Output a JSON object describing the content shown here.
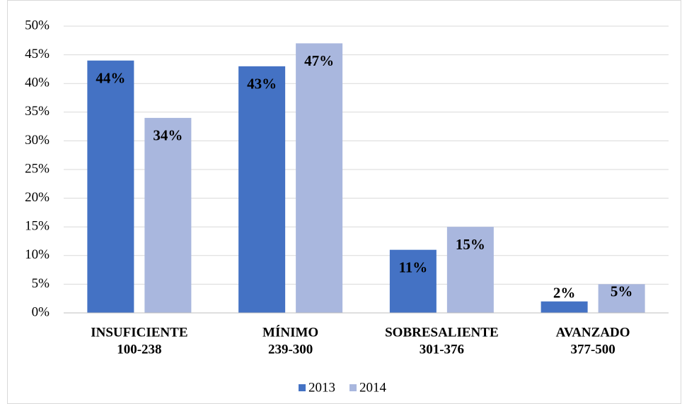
{
  "chart_data": {
    "type": "bar",
    "categories": [
      [
        "INSUFICIENTE",
        "100-238"
      ],
      [
        "MÍNIMO",
        "239-300"
      ],
      [
        "SOBRESALIENTE",
        "301-376"
      ],
      [
        "AVANZADO",
        "377-500"
      ]
    ],
    "series": [
      {
        "name": "2013",
        "color": "#4472c4",
        "values": [
          44,
          43,
          11,
          2
        ],
        "value_labels": [
          "44%",
          "43%",
          "11%",
          "2%"
        ]
      },
      {
        "name": "2014",
        "color": "#a9b7de",
        "values": [
          34,
          47,
          15,
          5
        ],
        "value_labels": [
          "34%",
          "47%",
          "15%",
          "5%"
        ]
      }
    ],
    "ylim": [
      0,
      50
    ],
    "yticks": [
      {
        "value": 0,
        "label": "0%"
      },
      {
        "value": 5,
        "label": "5%"
      },
      {
        "value": 10,
        "label": "10%"
      },
      {
        "value": 15,
        "label": "15%"
      },
      {
        "value": 20,
        "label": "20%"
      },
      {
        "value": 25,
        "label": "25%"
      },
      {
        "value": 30,
        "label": "30%"
      },
      {
        "value": 35,
        "label": "35%"
      },
      {
        "value": 40,
        "label": "40%"
      },
      {
        "value": 45,
        "label": "45%"
      },
      {
        "value": 50,
        "label": "50%"
      }
    ],
    "grid": true,
    "legend": "bottom"
  }
}
